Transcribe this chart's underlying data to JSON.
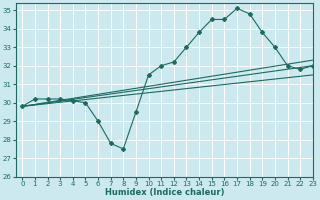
{
  "title": "",
  "xlabel": "Humidex (Indice chaleur)",
  "ylabel": "",
  "bg_color": "#cce9f0",
  "grid_color": "#ffffff",
  "line_color": "#1a6b60",
  "xlim": [
    -0.5,
    23
  ],
  "ylim": [
    26,
    35.4
  ],
  "xticks": [
    0,
    1,
    2,
    3,
    4,
    5,
    6,
    7,
    8,
    9,
    10,
    11,
    12,
    13,
    14,
    15,
    16,
    17,
    18,
    19,
    20,
    21,
    22,
    23
  ],
  "yticks": [
    26,
    27,
    28,
    29,
    30,
    31,
    32,
    33,
    34,
    35
  ],
  "figsize": [
    3.2,
    2.0
  ],
  "dpi": 100,
  "main_series": {
    "x": [
      0,
      1,
      2,
      3,
      4,
      5,
      6,
      7,
      8,
      9,
      10,
      11,
      12,
      13,
      14,
      15,
      16,
      17,
      18,
      19,
      20,
      21,
      22,
      23
    ],
    "y": [
      29.8,
      30.2,
      30.2,
      30.2,
      30.1,
      30.0,
      29.0,
      27.8,
      27.5,
      29.5,
      31.5,
      32.0,
      32.2,
      33.0,
      33.8,
      34.5,
      34.5,
      35.1,
      34.8,
      33.8,
      33.0,
      32.0,
      31.8,
      32.0
    ]
  },
  "reg_lines": [
    {
      "x": [
        0,
        23
      ],
      "y": [
        29.8,
        32.0
      ]
    },
    {
      "x": [
        0,
        23
      ],
      "y": [
        29.8,
        31.5
      ]
    },
    {
      "x": [
        0,
        23
      ],
      "y": [
        29.8,
        32.3
      ]
    }
  ],
  "xlabel_fontsize": 6,
  "tick_fontsize": 5,
  "linewidth": 0.8,
  "markersize": 2.0
}
